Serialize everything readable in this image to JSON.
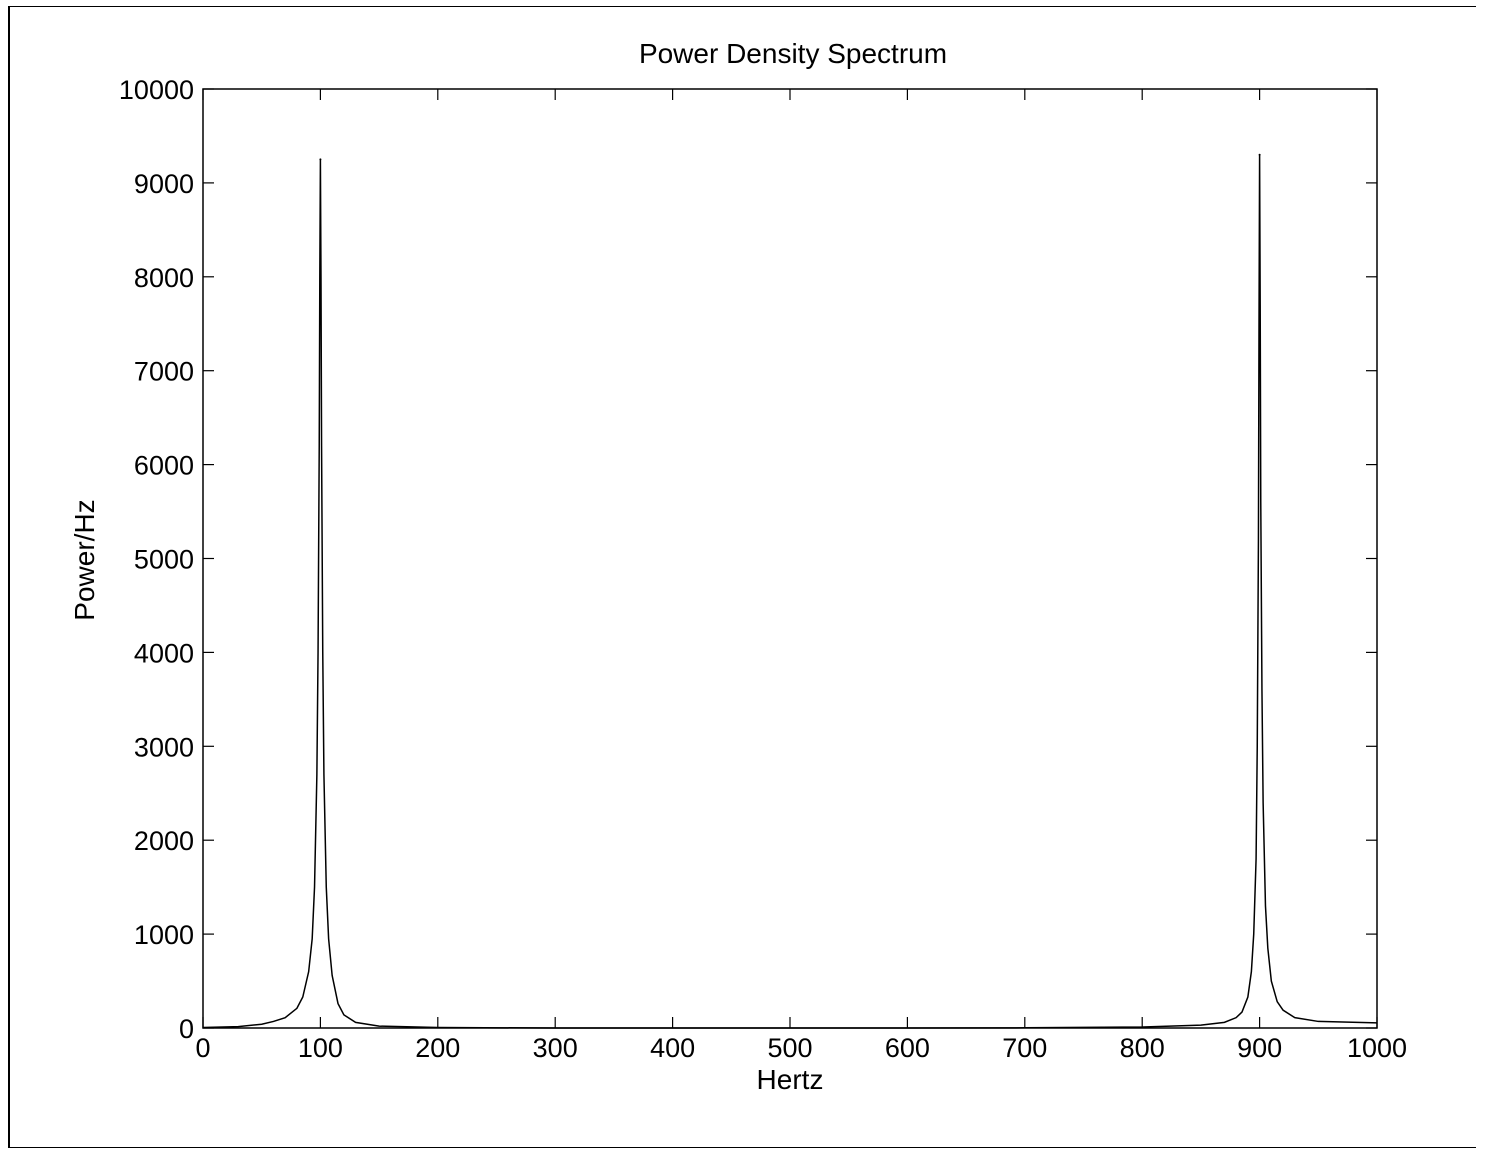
{
  "chart_data": {
    "type": "line",
    "title": "Power Density Spectrum",
    "xlabel": "Hertz",
    "ylabel": "Power/Hz",
    "xlim": [
      0,
      1000
    ],
    "ylim": [
      0,
      10000
    ],
    "xticks": [
      0,
      100,
      200,
      300,
      400,
      500,
      600,
      700,
      800,
      900,
      1000
    ],
    "yticks": [
      0,
      1000,
      2000,
      3000,
      4000,
      5000,
      6000,
      7000,
      8000,
      9000,
      10000
    ],
    "grid": false,
    "peaks": [
      {
        "x": 100,
        "y": 9250
      },
      {
        "x": 900,
        "y": 9300
      }
    ],
    "series": [
      {
        "x": [
          0,
          30,
          50,
          60,
          70,
          80,
          85,
          90,
          93,
          95,
          97,
          98,
          99,
          99.5,
          100,
          100.5,
          101,
          102,
          103,
          105,
          107,
          110,
          115,
          120,
          130,
          150,
          200,
          300,
          400,
          500,
          600,
          700,
          800,
          850,
          870,
          880,
          885,
          890,
          893,
          895,
          897,
          898,
          899,
          899.5,
          900,
          900.5,
          901,
          902,
          903,
          905,
          907,
          910,
          915,
          920,
          930,
          950,
          1000
        ],
        "y": [
          5,
          15,
          40,
          70,
          110,
          210,
          330,
          600,
          950,
          1500,
          2700,
          4000,
          6200,
          8000,
          9250,
          8000,
          6200,
          4000,
          2700,
          1500,
          950,
          560,
          260,
          140,
          60,
          20,
          5,
          0,
          0,
          0,
          0,
          2,
          10,
          30,
          60,
          110,
          170,
          330,
          600,
          1000,
          1800,
          3000,
          5200,
          7500,
          9300,
          7700,
          5600,
          3600,
          2400,
          1300,
          850,
          500,
          280,
          190,
          110,
          70,
          55
        ]
      }
    ]
  }
}
